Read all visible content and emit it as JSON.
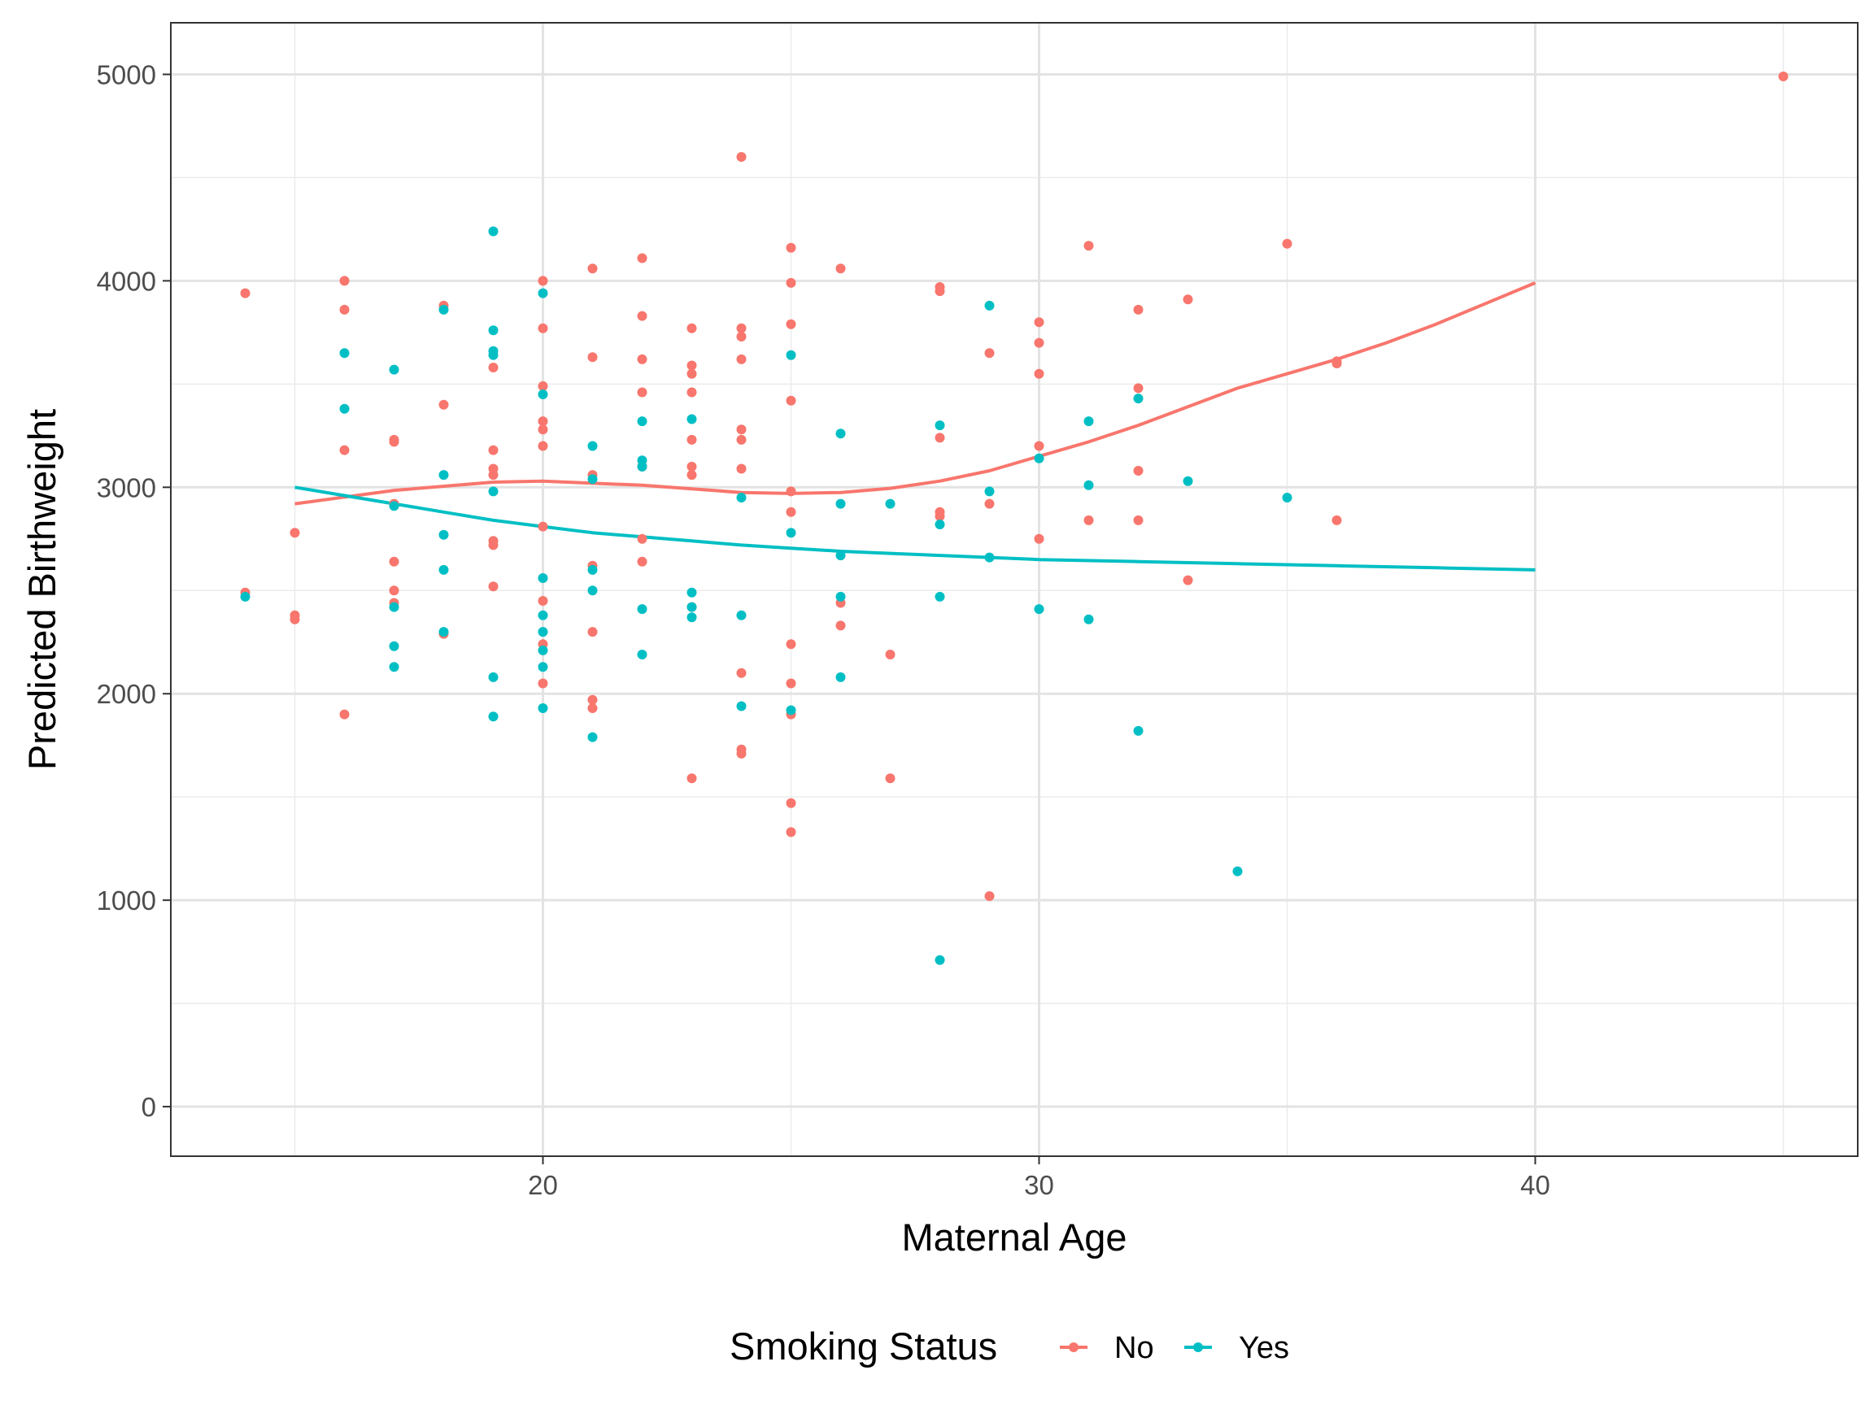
{
  "chart_data": {
    "type": "scatter",
    "title": "",
    "xlabel": "Maternal Age",
    "ylabel": "Predicted Birthweight",
    "xlim": [
      12.5,
      46.5
    ],
    "ylim": [
      -240,
      5250
    ],
    "x_ticks": [
      20,
      30,
      40
    ],
    "y_ticks": [
      0,
      1000,
      2000,
      3000,
      4000,
      5000
    ],
    "grid": true,
    "legend": {
      "title": "Smoking Status",
      "position": "bottom"
    },
    "series": [
      {
        "name": "No",
        "color": "#F8766D",
        "points": [
          [
            14,
            3940
          ],
          [
            14,
            2490
          ],
          [
            15,
            2780
          ],
          [
            15,
            2380
          ],
          [
            15,
            2360
          ],
          [
            16,
            4000
          ],
          [
            16,
            3860
          ],
          [
            16,
            3180
          ],
          [
            16,
            1900
          ],
          [
            17,
            3220
          ],
          [
            17,
            3230
          ],
          [
            17,
            2920
          ],
          [
            17,
            2640
          ],
          [
            17,
            2500
          ],
          [
            17,
            2440
          ],
          [
            18,
            3880
          ],
          [
            18,
            3400
          ],
          [
            18,
            2290
          ],
          [
            19,
            3580
          ],
          [
            19,
            3180
          ],
          [
            19,
            3090
          ],
          [
            19,
            3060
          ],
          [
            19,
            2740
          ],
          [
            19,
            2720
          ],
          [
            19,
            2520
          ],
          [
            20,
            4000
          ],
          [
            20,
            3770
          ],
          [
            20,
            3490
          ],
          [
            20,
            3320
          ],
          [
            20,
            3280
          ],
          [
            20,
            3200
          ],
          [
            20,
            2810
          ],
          [
            20,
            2450
          ],
          [
            20,
            2240
          ],
          [
            20,
            2050
          ],
          [
            21,
            4060
          ],
          [
            21,
            3630
          ],
          [
            21,
            3060
          ],
          [
            21,
            2620
          ],
          [
            21,
            2300
          ],
          [
            21,
            1970
          ],
          [
            21,
            1930
          ],
          [
            22,
            4110
          ],
          [
            22,
            3830
          ],
          [
            22,
            3620
          ],
          [
            22,
            3460
          ],
          [
            22,
            3100
          ],
          [
            22,
            2750
          ],
          [
            22,
            2640
          ],
          [
            23,
            3770
          ],
          [
            23,
            3590
          ],
          [
            23,
            3550
          ],
          [
            23,
            3460
          ],
          [
            23,
            3230
          ],
          [
            23,
            3100
          ],
          [
            23,
            3060
          ],
          [
            23,
            2420
          ],
          [
            23,
            1590
          ],
          [
            24,
            4600
          ],
          [
            24,
            3770
          ],
          [
            24,
            3730
          ],
          [
            24,
            3620
          ],
          [
            24,
            3280
          ],
          [
            24,
            3230
          ],
          [
            24,
            3090
          ],
          [
            24,
            2100
          ],
          [
            24,
            1730
          ],
          [
            24,
            1710
          ],
          [
            25,
            4160
          ],
          [
            25,
            3990
          ],
          [
            25,
            3790
          ],
          [
            25,
            3420
          ],
          [
            25,
            2980
          ],
          [
            25,
            2880
          ],
          [
            25,
            2240
          ],
          [
            25,
            2050
          ],
          [
            25,
            1900
          ],
          [
            25,
            1470
          ],
          [
            25,
            1330
          ],
          [
            26,
            4060
          ],
          [
            26,
            2440
          ],
          [
            26,
            2330
          ],
          [
            27,
            2190
          ],
          [
            27,
            1590
          ],
          [
            28,
            3970
          ],
          [
            28,
            3950
          ],
          [
            28,
            3240
          ],
          [
            28,
            2880
          ],
          [
            28,
            2860
          ],
          [
            29,
            3650
          ],
          [
            29,
            2920
          ],
          [
            29,
            1020
          ],
          [
            30,
            3800
          ],
          [
            30,
            3700
          ],
          [
            30,
            3550
          ],
          [
            30,
            3200
          ],
          [
            30,
            2750
          ],
          [
            31,
            4170
          ],
          [
            31,
            2840
          ],
          [
            32,
            3860
          ],
          [
            32,
            3480
          ],
          [
            32,
            3080
          ],
          [
            32,
            2840
          ],
          [
            33,
            3910
          ],
          [
            33,
            2550
          ],
          [
            35,
            4180
          ],
          [
            36,
            3610
          ],
          [
            36,
            3600
          ],
          [
            36,
            2840
          ],
          [
            45,
            4990
          ]
        ],
        "smooth": [
          [
            15,
            2920
          ],
          [
            17,
            2985
          ],
          [
            19,
            3025
          ],
          [
            20,
            3030
          ],
          [
            22,
            3010
          ],
          [
            24,
            2975
          ],
          [
            25,
            2970
          ],
          [
            26,
            2975
          ],
          [
            27,
            2995
          ],
          [
            28,
            3030
          ],
          [
            29,
            3080
          ],
          [
            30,
            3150
          ],
          [
            31,
            3220
          ],
          [
            32,
            3300
          ],
          [
            33,
            3390
          ],
          [
            34,
            3480
          ],
          [
            35,
            3550
          ],
          [
            36,
            3620
          ],
          [
            37,
            3700
          ],
          [
            38,
            3790
          ],
          [
            39,
            3890
          ],
          [
            40,
            3990
          ]
        ]
      },
      {
        "name": "Yes",
        "color": "#00BFC4",
        "points": [
          [
            14,
            2470
          ],
          [
            16,
            3650
          ],
          [
            16,
            3380
          ],
          [
            17,
            3570
          ],
          [
            17,
            2910
          ],
          [
            17,
            2420
          ],
          [
            17,
            2230
          ],
          [
            17,
            2130
          ],
          [
            18,
            3860
          ],
          [
            18,
            3060
          ],
          [
            18,
            2770
          ],
          [
            18,
            2600
          ],
          [
            18,
            2300
          ],
          [
            19,
            4240
          ],
          [
            19,
            3760
          ],
          [
            19,
            3660
          ],
          [
            19,
            3640
          ],
          [
            19,
            2980
          ],
          [
            19,
            2080
          ],
          [
            19,
            1890
          ],
          [
            20,
            3940
          ],
          [
            20,
            3450
          ],
          [
            20,
            2560
          ],
          [
            20,
            2380
          ],
          [
            20,
            2300
          ],
          [
            20,
            2210
          ],
          [
            20,
            2130
          ],
          [
            20,
            1930
          ],
          [
            21,
            3200
          ],
          [
            21,
            3040
          ],
          [
            21,
            2600
          ],
          [
            21,
            2500
          ],
          [
            21,
            1790
          ],
          [
            22,
            3320
          ],
          [
            22,
            3130
          ],
          [
            22,
            3100
          ],
          [
            22,
            2410
          ],
          [
            22,
            2190
          ],
          [
            23,
            3330
          ],
          [
            23,
            2490
          ],
          [
            23,
            2420
          ],
          [
            23,
            2370
          ],
          [
            24,
            2950
          ],
          [
            24,
            2380
          ],
          [
            24,
            1940
          ],
          [
            25,
            3640
          ],
          [
            25,
            2780
          ],
          [
            25,
            1920
          ],
          [
            26,
            3260
          ],
          [
            26,
            2920
          ],
          [
            26,
            2670
          ],
          [
            26,
            2470
          ],
          [
            26,
            2080
          ],
          [
            27,
            2920
          ],
          [
            28,
            3300
          ],
          [
            28,
            2820
          ],
          [
            28,
            2470
          ],
          [
            28,
            710
          ],
          [
            29,
            3880
          ],
          [
            29,
            2980
          ],
          [
            29,
            2660
          ],
          [
            30,
            3140
          ],
          [
            30,
            2410
          ],
          [
            31,
            3320
          ],
          [
            31,
            3010
          ],
          [
            31,
            2360
          ],
          [
            32,
            3430
          ],
          [
            32,
            1820
          ],
          [
            33,
            3030
          ],
          [
            34,
            1140
          ],
          [
            35,
            2950
          ]
        ],
        "smooth": [
          [
            15,
            3000
          ],
          [
            16,
            2960
          ],
          [
            17,
            2920
          ],
          [
            18,
            2880
          ],
          [
            19,
            2840
          ],
          [
            20,
            2810
          ],
          [
            21,
            2780
          ],
          [
            22,
            2760
          ],
          [
            23,
            2740
          ],
          [
            24,
            2720
          ],
          [
            25,
            2705
          ],
          [
            26,
            2690
          ],
          [
            27,
            2680
          ],
          [
            28,
            2670
          ],
          [
            29,
            2660
          ],
          [
            30,
            2650
          ],
          [
            32,
            2640
          ],
          [
            34,
            2630
          ],
          [
            36,
            2620
          ],
          [
            38,
            2610
          ],
          [
            40,
            2600
          ]
        ]
      }
    ]
  }
}
